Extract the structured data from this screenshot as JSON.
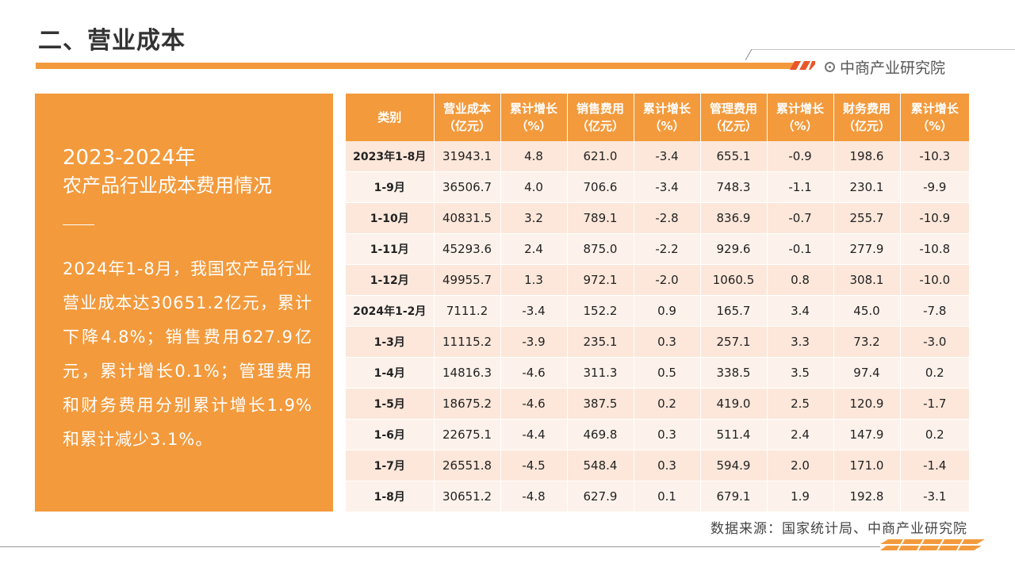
{
  "header": {
    "title": "二、营业成本",
    "brand": "中商产业研究院",
    "accent_color": "#F39A3C"
  },
  "summary": {
    "year": "2023-2024年",
    "subtitle": "农产品行业成本费用情况",
    "body": "2024年1-8月，我国农产品行业营业成本达30651.2亿元，累计下降4.8%；销售费用627.9亿元，累计增长0.1%；管理费用和财务费用分别累计增长1.9%和累计减少3.1%。"
  },
  "table": {
    "headers": [
      [
        "类别"
      ],
      [
        "营业成本",
        "（亿元）"
      ],
      [
        "累计增长",
        "（%）"
      ],
      [
        "销售费用",
        "（亿元）"
      ],
      [
        "累计增长",
        "（%）"
      ],
      [
        "管理费用",
        "（亿元）"
      ],
      [
        "累计增长",
        "（%）"
      ],
      [
        "财务费用",
        "（亿元）"
      ],
      [
        "累计增长",
        "（%）"
      ]
    ],
    "rows": [
      [
        "2023年1-8月",
        "31943.1",
        "4.8",
        "621.0",
        "-3.4",
        "655.1",
        "-0.9",
        "198.6",
        "-10.3"
      ],
      [
        "1-9月",
        "36506.7",
        "4.0",
        "706.6",
        "-3.4",
        "748.3",
        "-1.1",
        "230.1",
        "-9.9"
      ],
      [
        "1-10月",
        "40831.5",
        "3.2",
        "789.1",
        "-2.8",
        "836.9",
        "-0.7",
        "255.7",
        "-10.9"
      ],
      [
        "1-11月",
        "45293.6",
        "2.4",
        "875.0",
        "-2.2",
        "929.6",
        "-0.1",
        "277.9",
        "-10.8"
      ],
      [
        "1-12月",
        "49955.7",
        "1.3",
        "972.1",
        "-2.0",
        "1060.5",
        "0.8",
        "308.1",
        "-10.0"
      ],
      [
        "2024年1-2月",
        "7111.2",
        "-3.4",
        "152.2",
        "0.9",
        "165.7",
        "3.4",
        "45.0",
        "-7.8"
      ],
      [
        "1-3月",
        "11115.2",
        "-3.9",
        "235.1",
        "0.3",
        "257.1",
        "3.3",
        "73.2",
        "-3.0"
      ],
      [
        "1-4月",
        "14816.3",
        "-4.6",
        "311.3",
        "0.5",
        "338.5",
        "3.5",
        "97.4",
        "0.2"
      ],
      [
        "1-5月",
        "18675.2",
        "-4.6",
        "387.5",
        "0.2",
        "419.0",
        "2.5",
        "120.9",
        "-1.7"
      ],
      [
        "1-6月",
        "22675.1",
        "-4.4",
        "469.8",
        "0.3",
        "511.4",
        "2.4",
        "147.9",
        "0.2"
      ],
      [
        "1-7月",
        "26551.8",
        "-4.5",
        "548.4",
        "0.3",
        "594.9",
        "2.0",
        "171.0",
        "-1.4"
      ],
      [
        "1-8月",
        "30651.2",
        "-4.8",
        "627.9",
        "0.1",
        "679.1",
        "1.9",
        "192.8",
        "-3.1"
      ]
    ]
  },
  "footer": {
    "source": "数据来源：国家统计局、中商产业研究院"
  }
}
